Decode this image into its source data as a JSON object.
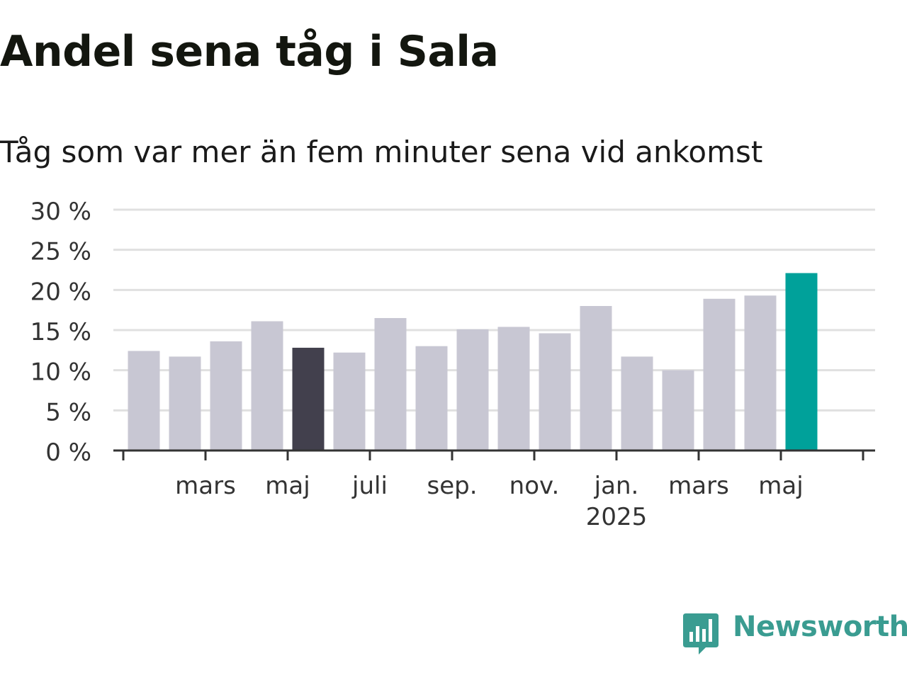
{
  "colors": {
    "bar_default": "#c8c7d3",
    "bar_highlight": "#42404d",
    "bar_latest": "#00a19a",
    "grid": "#e0e0e0",
    "axis": "#333333",
    "logo": "#3a9c91"
  },
  "logo": {
    "text": "Newsworthy",
    "icon": "chart-bubble-icon"
  },
  "chart_data": {
    "type": "bar",
    "title": "Andel sena tåg i Sala",
    "subtitle": "Tåg som var mer än fem minuter sena vid ankomst",
    "x": [
      "2024-01",
      "2024-02",
      "2024-03",
      "2024-04",
      "2024-05",
      "2024-06",
      "2024-07",
      "2024-08",
      "2024-09",
      "2024-10",
      "2024-11",
      "2024-12",
      "2025-01",
      "2025-02",
      "2025-03",
      "2025-04",
      "2025-05",
      "2025-06"
    ],
    "values": [
      12.4,
      11.7,
      13.6,
      16.1,
      12.8,
      12.2,
      16.5,
      13.0,
      15.1,
      15.4,
      14.6,
      18.0,
      11.7,
      10.0,
      18.9,
      19.3,
      22.1,
      null
    ],
    "highlight_index": 4,
    "latest_index": 16,
    "ylim": [
      0,
      30
    ],
    "yticks": [
      0,
      5,
      10,
      15,
      20,
      25,
      30
    ],
    "ytick_labels": [
      "0 %",
      "5 %",
      "10 %",
      "15 %",
      "20 %",
      "25 %",
      "30 %"
    ],
    "xtick_labels": [
      {
        "label": "mars",
        "year": ""
      },
      {
        "label": "maj",
        "year": ""
      },
      {
        "label": "juli",
        "year": ""
      },
      {
        "label": "sep.",
        "year": ""
      },
      {
        "label": "nov.",
        "year": ""
      },
      {
        "label": "jan.",
        "year": "2025"
      },
      {
        "label": "mars",
        "year": ""
      },
      {
        "label": "maj",
        "year": ""
      }
    ],
    "xlabel": "",
    "ylabel": "",
    "grid": true,
    "legend": "none"
  }
}
